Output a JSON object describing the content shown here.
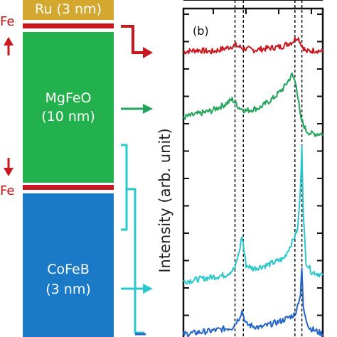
{
  "colors": {
    "ru": "#d4a82f",
    "fe_layer": "#c9171e",
    "mgfeo": "#22b14c",
    "cofeb": "#1a7ac7",
    "arrow_red": "#c9171e",
    "arrow_green": "#22a45a",
    "arrow_cyan": "#2ac8cc",
    "arrow_blue": "#2566c8"
  },
  "stack": {
    "ru_label": "Ru (3 nm)",
    "fe_top_label": "Fe",
    "fe_bottom_label": "Fe",
    "mgfeo_label_1": "MgFeO",
    "mgfeo_label_2": "(10 nm)",
    "cofeb_label_1": "CoFeB",
    "cofeb_label_2": "(3 nm)",
    "spin_up_icon": "up-arrow-icon",
    "spin_down_icon": "down-arrow-icon"
  },
  "chart_data": {
    "type": "line",
    "panel_label": "(b)",
    "ylabel": "Intensity (arb. unit)",
    "xlim": [
      0,
      100
    ],
    "dashed_lines_x": [
      37,
      43,
      80,
      85
    ],
    "series": [
      {
        "color": "#c9171e",
        "offset": 0.86,
        "x": [
          0,
          10,
          20,
          30,
          37,
          43,
          50,
          60,
          70,
          78,
          82,
          85,
          88,
          95,
          100
        ],
        "y": [
          0.0,
          0.005,
          0.0,
          0.01,
          0.02,
          0.01,
          0.005,
          0.01,
          0.015,
          0.03,
          0.045,
          0.02,
          0.0,
          0.005,
          0.0
        ]
      },
      {
        "color": "#22a45a",
        "offset": 0.66,
        "x": [
          0,
          10,
          20,
          30,
          35,
          40,
          45,
          55,
          65,
          72,
          78,
          81,
          84,
          88,
          92,
          100
        ],
        "y": [
          0.0,
          0.01,
          0.02,
          0.04,
          0.055,
          0.03,
          0.02,
          0.03,
          0.06,
          0.09,
          0.13,
          0.1,
          0.0,
          -0.04,
          -0.05,
          -0.05
        ]
      },
      {
        "color": "#2ac8cc",
        "offset": 0.16,
        "x": [
          0,
          15,
          30,
          37,
          40,
          42,
          45,
          50,
          60,
          72,
          78,
          82,
          84,
          85,
          86,
          88,
          92,
          100
        ],
        "y": [
          0.0,
          0.01,
          0.02,
          0.04,
          0.09,
          0.14,
          0.05,
          0.04,
          0.05,
          0.07,
          0.12,
          0.16,
          0.28,
          0.42,
          0.2,
          0.06,
          0.03,
          0.02
        ]
      },
      {
        "color": "#2566c8",
        "offset": 0.0,
        "x": [
          0,
          20,
          35,
          40,
          42,
          45,
          55,
          70,
          80,
          84,
          85,
          86,
          90,
          100
        ],
        "y": [
          0.0,
          0.01,
          0.02,
          0.05,
          0.07,
          0.03,
          0.02,
          0.04,
          0.06,
          0.12,
          0.2,
          0.08,
          0.02,
          0.0
        ]
      }
    ]
  }
}
